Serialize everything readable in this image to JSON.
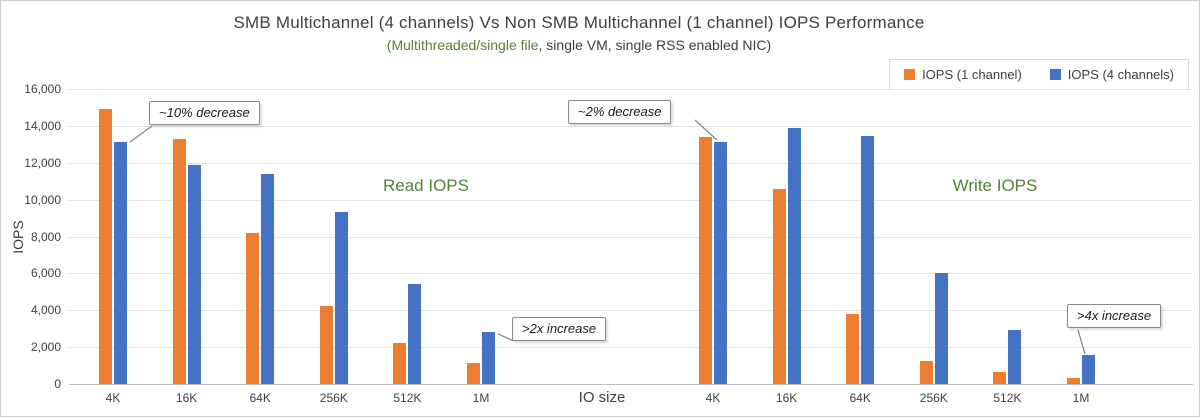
{
  "chart_data": {
    "type": "bar",
    "title": "SMB Multichannel (4 channels) Vs Non SMB Multichannel (1 channel) IOPS Performance",
    "subtitle_highlight": "(Multithreaded/single file",
    "subtitle_rest": ", single VM, single RSS enabled NIC)",
    "ylabel": "IOPS",
    "xlabel": "IO size",
    "ylim": [
      0,
      16000
    ],
    "ytick_step": 2000,
    "grid": true,
    "legend_position": "top-right",
    "legend": [
      {
        "name": "IOPS (1 channel)",
        "color": "#ED7D31"
      },
      {
        "name": "IOPS (4 channels)",
        "color": "#4472C4"
      }
    ],
    "categories": [
      "4K",
      "16K",
      "64K",
      "256K",
      "512K",
      "1M"
    ],
    "groups": [
      {
        "label": "Read IOPS",
        "series": [
          {
            "name": "IOPS (1 channel)",
            "values": [
              14900,
              13300,
              8200,
              4250,
              2250,
              1150
            ]
          },
          {
            "name": "IOPS (4 channels)",
            "values": [
              13100,
              11900,
              11400,
              9350,
              5450,
              2800
            ]
          }
        ]
      },
      {
        "label": "Write IOPS",
        "series": [
          {
            "name": "IOPS (1 channel)",
            "values": [
              13400,
              10550,
              3800,
              1250,
              650,
              300
            ]
          },
          {
            "name": "IOPS (4 channels)",
            "values": [
              13100,
              13900,
              13450,
              6000,
              2950,
              1550
            ]
          }
        ]
      }
    ],
    "annotations": [
      {
        "id": "read-4k",
        "text": "~10% decrease"
      },
      {
        "id": "write-4k",
        "text": "~2% decrease"
      },
      {
        "id": "read-1m",
        "text": ">2x increase"
      },
      {
        "id": "write-1m",
        "text": ">4x increase"
      }
    ]
  }
}
